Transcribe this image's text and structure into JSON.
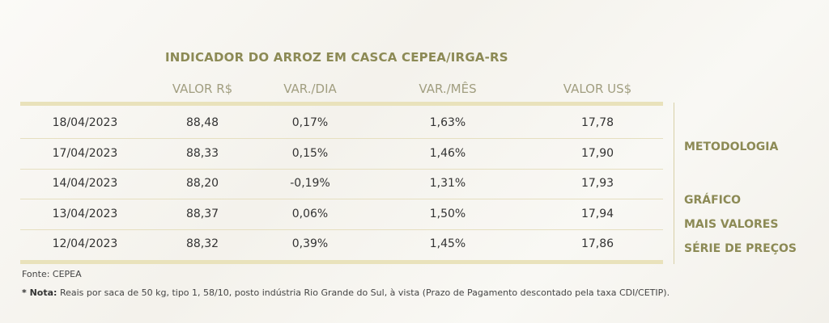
{
  "title": "INDICADOR DO ARROZ EM CASCA CEPEA/IRGA-RS",
  "table": {
    "headers": [
      "VALOR R$",
      "VAR./DIA",
      "VAR./MÊS",
      "VALOR US$"
    ],
    "rows": [
      [
        "18/04/2023",
        "88,48",
        "0,17%",
        "1,63%",
        "17,78"
      ],
      [
        "17/04/2023",
        "88,33",
        "0,15%",
        "1,46%",
        "17,90"
      ],
      [
        "14/04/2023",
        "88,20",
        "-0,19%",
        "1,31%",
        "17,93"
      ],
      [
        "13/04/2023",
        "88,37",
        "0,06%",
        "1,50%",
        "17,94"
      ],
      [
        "12/04/2023",
        "88,32",
        "0,39%",
        "1,45%",
        "17,86"
      ]
    ]
  },
  "links": [
    "METODOLOGIA",
    "GRÁFICO",
    "MAIS VALORES",
    "SÉRIE DE PREÇOS"
  ],
  "source": "Fonte: CEPEA",
  "note": {
    "label": "* Nota:",
    "text": "Reais por saca de 50 kg, tipo 1, 58/10, posto indústria Rio Grande do Sul, à vista (Prazo de Pagamento descontado pela taxa CDI/CETIP)."
  }
}
